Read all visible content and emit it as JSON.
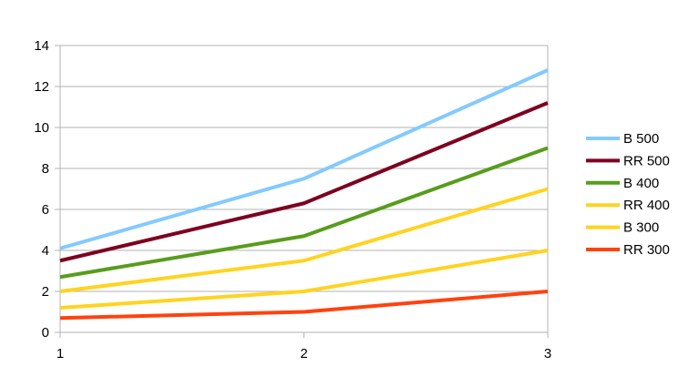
{
  "chart_data": {
    "type": "line",
    "title": "",
    "xlabel": "",
    "ylabel": "",
    "x": [
      1,
      2,
      3
    ],
    "x_tick_labels": [
      "1",
      "2",
      "3"
    ],
    "ylim": [
      0,
      14
    ],
    "y_ticks": [
      0,
      2,
      4,
      6,
      8,
      10,
      12,
      14
    ],
    "y_tick_labels": [
      "0",
      "2",
      "4",
      "6",
      "8",
      "10",
      "12",
      "14"
    ],
    "grid": "horizontal",
    "legend_position": "right",
    "series": [
      {
        "name": "B 500",
        "color": "#83CAFF",
        "values": [
          4.1,
          7.5,
          12.8
        ]
      },
      {
        "name": "RR 500",
        "color": "#7E0021",
        "values": [
          3.5,
          6.3,
          11.2
        ]
      },
      {
        "name": "B 400",
        "color": "#579D1C",
        "values": [
          2.7,
          4.7,
          9.0
        ]
      },
      {
        "name": "RR 400",
        "color": "#FFD320",
        "values": [
          2.0,
          3.5,
          7.0
        ]
      },
      {
        "name": "B 300",
        "color": "#FFD320",
        "values": [
          1.2,
          2.0,
          4.0
        ]
      },
      {
        "name": "RR 300",
        "color": "#FF420E",
        "values": [
          0.7,
          1.0,
          2.0
        ]
      }
    ]
  }
}
